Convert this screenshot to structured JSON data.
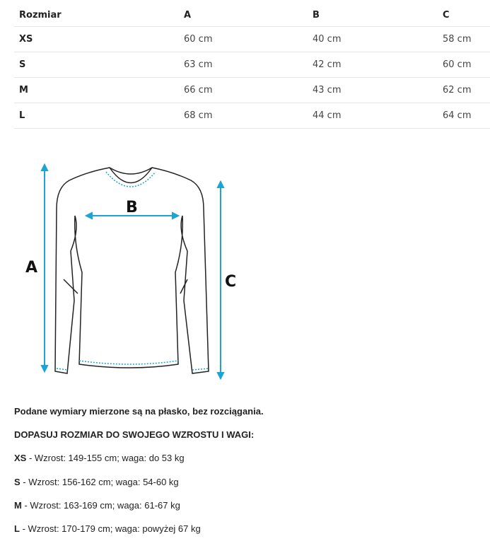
{
  "table": {
    "headers": [
      "Rozmiar",
      "A",
      "B",
      "C"
    ],
    "rows": [
      [
        "XS",
        "60 cm",
        "40 cm",
        "58 cm"
      ],
      [
        "S",
        "63 cm",
        "42 cm",
        "60 cm"
      ],
      [
        "M",
        "66 cm",
        "43 cm",
        "62 cm"
      ],
      [
        "L",
        "68 cm",
        "44 cm",
        "64 cm"
      ]
    ]
  },
  "diagram": {
    "label_a": "A",
    "label_b": "B",
    "label_c": "C",
    "accent": "#1ba4d4"
  },
  "notes": {
    "flat": "Podane wymiary mierzone są na płasko, bez rozciągania.",
    "fit": "DOPASUJ ROZMIAR DO SWOJEGO WZROSTU I WAGI:",
    "sizes": [
      {
        "size": "XS",
        "text": " - Wzrost: 149-155 cm; waga: do 53 kg"
      },
      {
        "size": "S",
        "text": " - Wzrost: 156-162 cm; waga: 54-60 kg"
      },
      {
        "size": "M",
        "text": " - Wzrost: 163-169 cm; waga: 61-67 kg"
      },
      {
        "size": "L",
        "text": " - Wzrost: 170-179 cm; waga: powyżej 67 kg"
      }
    ]
  }
}
